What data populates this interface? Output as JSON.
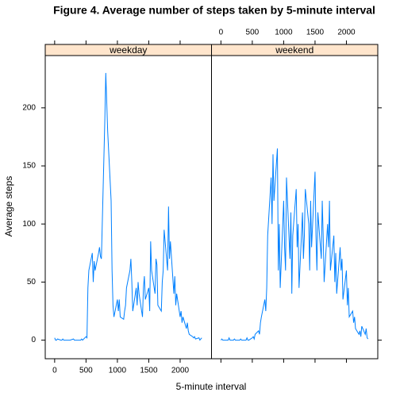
{
  "chart_data": {
    "type": "line",
    "title": "Figure 4. Average number of steps taken by 5-minute interval",
    "xlabel": "5-minute interval",
    "ylabel": "Average steps",
    "x": [
      0,
      15,
      30,
      45,
      100,
      115,
      130,
      145,
      200,
      215,
      230,
      245,
      300,
      315,
      330,
      345,
      400,
      415,
      430,
      445,
      500,
      515,
      530,
      545,
      600,
      615,
      630,
      645,
      700,
      715,
      730,
      745,
      800,
      815,
      830,
      845,
      900,
      915,
      930,
      945,
      1000,
      1015,
      1030,
      1045,
      1100,
      1115,
      1130,
      1145,
      1200,
      1215,
      1230,
      1245,
      1300,
      1315,
      1330,
      1345,
      1400,
      1415,
      1430,
      1445,
      1500,
      1515,
      1530,
      1545,
      1600,
      1615,
      1630,
      1645,
      1700,
      1715,
      1730,
      1745,
      1800,
      1815,
      1830,
      1845,
      1900,
      1915,
      1930,
      1945,
      2000,
      2015,
      2030,
      2045,
      2100,
      2115,
      2130,
      2145,
      2200,
      2215,
      2230,
      2245,
      2300,
      2315,
      2330,
      2345
    ],
    "series": [
      {
        "name": "weekday",
        "color": "#0080ff",
        "values": [
          2,
          0,
          0,
          1,
          0,
          0,
          1,
          0,
          0,
          0,
          0,
          0,
          1,
          0,
          0,
          0,
          0,
          0,
          1,
          0,
          3,
          2,
          45,
          60,
          75,
          50,
          68,
          60,
          75,
          80,
          72,
          70,
          190,
          230,
          205,
          180,
          120,
          60,
          30,
          20,
          35,
          25,
          35,
          20,
          18,
          25,
          30,
          45,
          60,
          70,
          50,
          25,
          45,
          30,
          50,
          40,
          20,
          45,
          55,
          35,
          45,
          25,
          85,
          60,
          40,
          70,
          65,
          30,
          25,
          50,
          60,
          95,
          60,
          115,
          70,
          85,
          40,
          55,
          30,
          40,
          20,
          25,
          15,
          20,
          10,
          15,
          8,
          5,
          3,
          2,
          3,
          1,
          2,
          0,
          1,
          2
        ]
      },
      {
        "name": "weekend",
        "color": "#0080ff",
        "values": [
          0,
          1,
          0,
          0,
          0,
          0,
          2,
          0,
          0,
          1,
          0,
          0,
          0,
          1,
          0,
          0,
          0,
          2,
          0,
          0,
          2,
          3,
          1,
          5,
          8,
          5,
          15,
          20,
          35,
          25,
          45,
          90,
          140,
          100,
          160,
          120,
          165,
          60,
          100,
          45,
          120,
          80,
          60,
          140,
          70,
          110,
          40,
          90,
          130,
          80,
          100,
          45,
          110,
          70,
          90,
          130,
          100,
          60,
          120,
          80,
          145,
          90,
          60,
          110,
          70,
          120,
          90,
          50,
          100,
          80,
          120,
          60,
          90,
          50,
          75,
          40,
          80,
          60,
          70,
          35,
          60,
          30,
          45,
          20,
          25,
          15,
          20,
          10,
          5,
          8,
          3,
          12,
          5,
          10,
          2,
          1
        ]
      }
    ],
    "xlim": [
      -150,
      2500
    ],
    "ylim": [
      -16,
      245
    ],
    "xticks": [
      0,
      500,
      1000,
      1500,
      2000
    ],
    "yticks": [
      0,
      50,
      100,
      150,
      200
    ]
  }
}
